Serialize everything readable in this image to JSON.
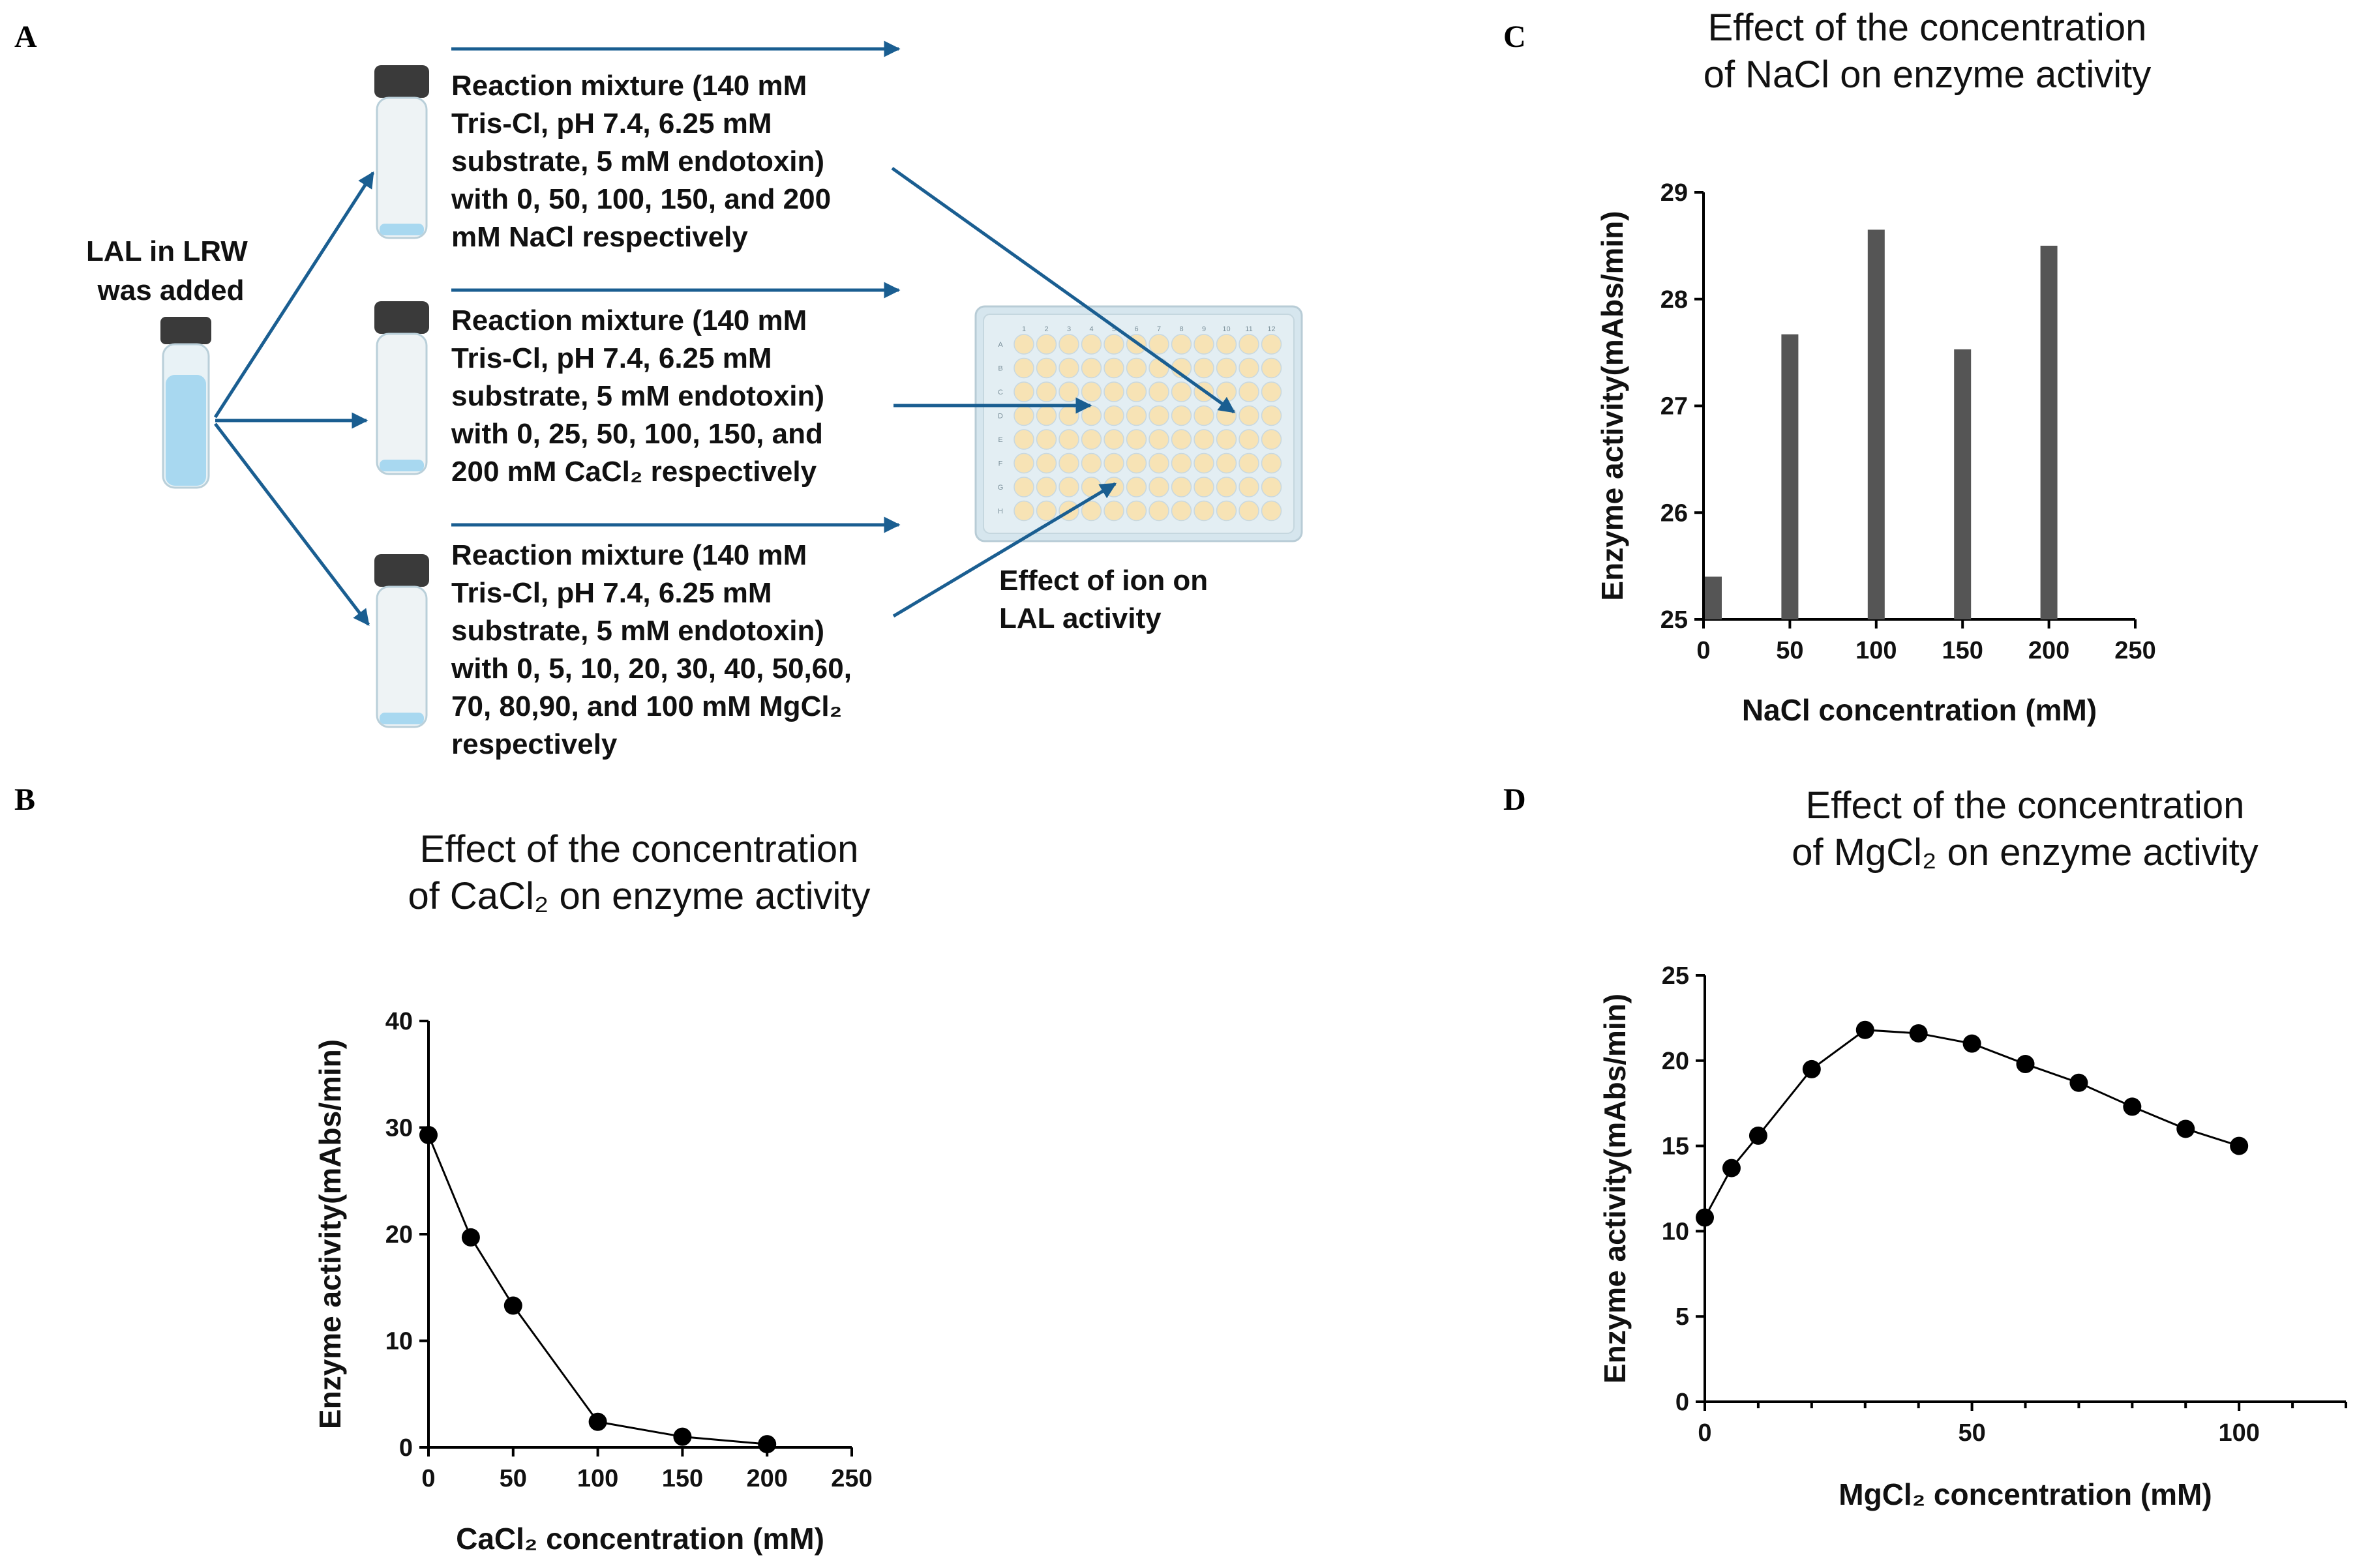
{
  "panels": {
    "a": {
      "letter": "A",
      "lal_text": [
        "LAL in LRW",
        "was added"
      ],
      "mixtures": [
        [
          "Reaction mixture (140 mM",
          "Tris-Cl, pH 7.4, 6.25 mM",
          "substrate, 5 mM endotoxin)",
          "with 0, 50, 100, 150, and 200",
          "mM NaCl respectively"
        ],
        [
          "Reaction mixture (140 mM",
          "Tris-Cl, pH 7.4, 6.25 mM",
          "substrate, 5 mM endotoxin)",
          "with 0, 25, 50, 100, 150, and",
          "200 mM CaCl₂  respectively"
        ],
        [
          "Reaction mixture (140 mM",
          "Tris-Cl, pH 7.4, 6.25 mM",
          "substrate, 5 mM endotoxin)",
          "with 0, 5, 10, 20, 30, 40, 50,60,",
          "70, 80,90, and 100 mM MgCl₂",
          "respectively"
        ]
      ],
      "result_text": [
        "Effect of ion  on",
        "LAL activity"
      ],
      "plate_cols": [
        "1",
        "2",
        "3",
        "4",
        "5",
        "6",
        "7",
        "8",
        "9",
        "10",
        "11",
        "12"
      ],
      "plate_rows": [
        "A",
        "B",
        "C",
        "D",
        "E",
        "F",
        "G",
        "H"
      ],
      "colors": {
        "arrow": "#1a5e91",
        "vial_cap": "#3a3a3a",
        "liquid": "#a8d8f0",
        "plate": "#d6e6ee",
        "well": "#f7e3b5"
      }
    },
    "b": {
      "letter": "B"
    },
    "c": {
      "letter": "C"
    },
    "d": {
      "letter": "D"
    }
  },
  "chart_data": [
    {
      "panel": "C",
      "type": "bar",
      "title_lines": [
        "Effect of the concentration",
        "of NaCl on enzyme activity"
      ],
      "xlabel": "NaCl concentration (mM)",
      "ylabel": "Enzyme activity(mAbs/min)",
      "x": [
        0,
        50,
        100,
        150,
        200
      ],
      "values": [
        25.4,
        27.67,
        28.65,
        27.53,
        28.5
      ],
      "xlim": [
        0,
        250
      ],
      "ylim": [
        25,
        29
      ],
      "xticks": [
        0,
        50,
        100,
        150,
        200,
        250
      ],
      "yticks": [
        25,
        26,
        27,
        28,
        29
      ],
      "grid": false,
      "colors": {
        "bar": "#555555"
      }
    },
    {
      "panel": "B",
      "type": "line",
      "title_lines": [
        "Effect of the concentration",
        "of CaCl₂ on enzyme activity"
      ],
      "xlabel": "CaCl₂ concentration (mM)",
      "ylabel": "Enzyme activity(mAbs/min)",
      "x": [
        0,
        25,
        50,
        100,
        150,
        200
      ],
      "values": [
        29.3,
        19.7,
        13.3,
        2.4,
        1.0,
        0.3
      ],
      "xlim": [
        0,
        250
      ],
      "ylim": [
        0,
        40
      ],
      "xticks": [
        0,
        50,
        100,
        150,
        200,
        250
      ],
      "yticks": [
        0,
        10,
        20,
        30,
        40
      ],
      "grid": false,
      "markers": "circle"
    },
    {
      "panel": "D",
      "type": "line",
      "title_lines": [
        "Effect of the concentration",
        "of MgCl₂ on enzyme activity"
      ],
      "xlabel": "MgCl₂ concentration (mM)",
      "ylabel": "Enzyme activity(mAbs/min)",
      "x": [
        0,
        5,
        10,
        20,
        30,
        40,
        50,
        60,
        70,
        80,
        90,
        100
      ],
      "values": [
        10.8,
        13.7,
        15.6,
        19.5,
        21.8,
        21.6,
        21.0,
        19.8,
        18.7,
        17.3,
        16.0,
        15.0
      ],
      "xlim": [
        0,
        120
      ],
      "ylim": [
        0,
        25
      ],
      "xticks": [
        0,
        50,
        100
      ],
      "xminor": [
        10,
        20,
        30,
        40,
        60,
        70,
        80,
        90,
        110,
        120
      ],
      "yticks": [
        0,
        5,
        10,
        15,
        20,
        25
      ],
      "grid": false,
      "markers": "circle"
    }
  ]
}
